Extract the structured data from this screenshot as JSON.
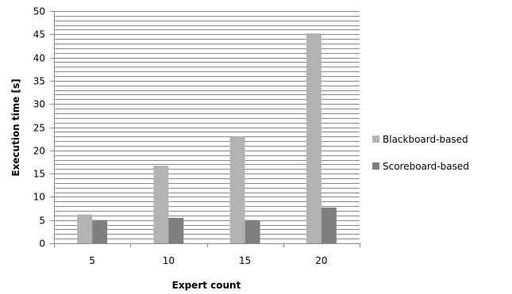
{
  "chart_data": {
    "type": "bar",
    "title": "",
    "xlabel": "Expert count",
    "ylabel": "Execution time [s]",
    "categories": [
      "5",
      "10",
      "15",
      "20"
    ],
    "ylim": [
      0,
      50
    ],
    "y_major_ticks": [
      "0",
      "5",
      "10",
      "15",
      "20",
      "25",
      "30",
      "35",
      "40",
      "45",
      "50"
    ],
    "y_minor_step": 1,
    "grid": true,
    "legend_position": "right",
    "series": [
      {
        "name": "Blackboard-based",
        "color": "#b3b3b3",
        "values": [
          6.2,
          16.7,
          23,
          45.2
        ]
      },
      {
        "name": "Scoreboard-based",
        "color": "#7f7f7f",
        "values": [
          5,
          5.5,
          5,
          7.7
        ]
      }
    ]
  }
}
